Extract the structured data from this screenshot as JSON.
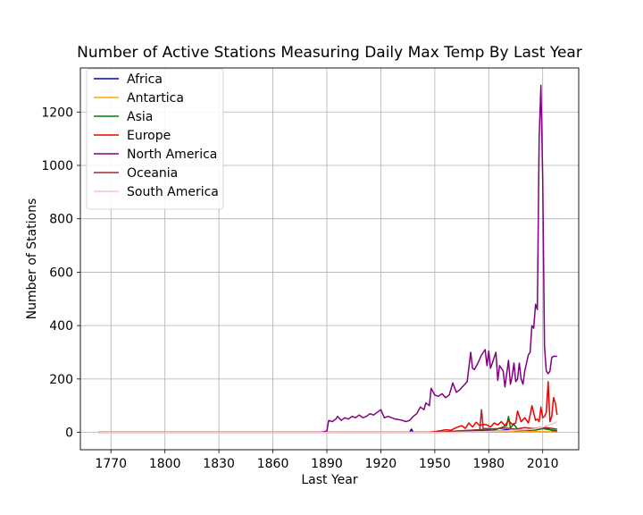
{
  "chart_data": {
    "type": "line",
    "title": "Number of Active Stations Measuring Daily Max Temp By Last Year",
    "xlabel": "Last Year",
    "ylabel": "Number of Stations",
    "xlim": [
      1753,
      2030
    ],
    "ylim": [
      -65,
      1365
    ],
    "xticks": [
      1770,
      1800,
      1830,
      1860,
      1890,
      1920,
      1950,
      1980,
      2010
    ],
    "yticks": [
      0,
      200,
      400,
      600,
      800,
      1000,
      1200
    ],
    "grid": true,
    "legend_position": "top-left",
    "series": [
      {
        "name": "Africa",
        "color": "#0000cc",
        "x": [
          1763,
          1936,
          1937,
          1938,
          1950,
          1960,
          1975,
          1980,
          1985,
          1990,
          1995,
          2000,
          2005,
          2010,
          2012,
          2014,
          2016,
          2018
        ],
        "y": [
          0,
          0,
          12,
          0,
          1,
          2,
          6,
          8,
          5,
          10,
          6,
          8,
          8,
          14,
          16,
          10,
          5,
          3
        ]
      },
      {
        "name": "Antartica",
        "color": "#ffa500",
        "x": [
          1763,
          1950,
          1970,
          1985,
          1990,
          1995,
          2000,
          2005,
          2010,
          2015,
          2018
        ],
        "y": [
          0,
          0,
          1,
          2,
          3,
          2,
          2,
          4,
          3,
          2,
          1
        ]
      },
      {
        "name": "Asia",
        "color": "#008000",
        "x": [
          1763,
          1950,
          1955,
          1960,
          1965,
          1970,
          1975,
          1980,
          1984,
          1986,
          1988,
          1990,
          1991,
          1992,
          1994,
          1996,
          2000,
          2005,
          2010,
          2014,
          2018
        ],
        "y": [
          0,
          0,
          2,
          4,
          6,
          8,
          10,
          14,
          10,
          16,
          20,
          25,
          60,
          18,
          30,
          12,
          8,
          10,
          14,
          10,
          6
        ]
      },
      {
        "name": "Europe",
        "color": "#ee0000",
        "x": [
          1763,
          1945,
          1950,
          1953,
          1956,
          1959,
          1962,
          1965,
          1967,
          1969,
          1971,
          1973,
          1975,
          1977,
          1979,
          1981,
          1983,
          1985,
          1987,
          1989,
          1991,
          1993,
          1995,
          1996,
          1998,
          2000,
          2002,
          2003,
          2004,
          2006,
          2007,
          2008,
          2009,
          2010,
          2011,
          2012,
          2013,
          2014,
          2015,
          2016,
          2017,
          2018
        ],
        "y": [
          0,
          0,
          3,
          6,
          10,
          8,
          18,
          25,
          15,
          35,
          20,
          38,
          25,
          30,
          28,
          20,
          35,
          28,
          40,
          25,
          45,
          30,
          35,
          80,
          40,
          55,
          35,
          65,
          100,
          45,
          50,
          40,
          95,
          55,
          60,
          75,
          190,
          40,
          60,
          130,
          110,
          65
        ]
      },
      {
        "name": "North America",
        "color": "#800080",
        "x": [
          1763,
          1886,
          1888,
          1890,
          1891,
          1893,
          1895,
          1896,
          1898,
          1900,
          1902,
          1904,
          1906,
          1908,
          1910,
          1912,
          1914,
          1916,
          1918,
          1920,
          1922,
          1924,
          1926,
          1928,
          1930,
          1932,
          1934,
          1936,
          1938,
          1940,
          1942,
          1944,
          1945,
          1947,
          1948,
          1950,
          1952,
          1954,
          1956,
          1958,
          1960,
          1962,
          1964,
          1966,
          1968,
          1970,
          1971,
          1972,
          1974,
          1976,
          1978,
          1979,
          1980,
          1981,
          1982,
          1984,
          1985,
          1986,
          1988,
          1989,
          1990,
          1991,
          1992,
          1993,
          1994,
          1995,
          1996,
          1997,
          1998,
          1999,
          2000,
          2001,
          2002,
          2003,
          2004,
          2005,
          2006,
          2007,
          2008,
          2009,
          2010,
          2011,
          2012,
          2013,
          2014,
          2015,
          2016,
          2017,
          2018
        ],
        "y": [
          0,
          0,
          2,
          5,
          45,
          40,
          50,
          60,
          45,
          55,
          50,
          60,
          55,
          65,
          55,
          60,
          70,
          65,
          75,
          85,
          55,
          60,
          55,
          50,
          48,
          45,
          40,
          45,
          60,
          70,
          95,
          85,
          110,
          100,
          165,
          140,
          135,
          145,
          130,
          140,
          185,
          150,
          160,
          175,
          190,
          300,
          240,
          235,
          260,
          290,
          310,
          250,
          305,
          240,
          260,
          300,
          195,
          250,
          230,
          170,
          220,
          270,
          180,
          210,
          260,
          190,
          200,
          260,
          200,
          180,
          230,
          260,
          290,
          300,
          400,
          390,
          480,
          460,
          1100,
          1300,
          950,
          320,
          230,
          220,
          230,
          280,
          285,
          285,
          285
        ]
      },
      {
        "name": "Oceania",
        "color": "#a52a2a",
        "x": [
          1763,
          1950,
          1955,
          1960,
          1965,
          1970,
          1975,
          1976,
          1977,
          1978,
          1980,
          1985,
          1990,
          1995,
          2000,
          2005,
          2010,
          2015,
          2018
        ],
        "y": [
          0,
          0,
          2,
          4,
          6,
          8,
          10,
          85,
          10,
          15,
          12,
          14,
          16,
          12,
          18,
          14,
          20,
          15,
          12
        ]
      },
      {
        "name": "South America",
        "color": "#ffc0cb",
        "x": [
          1763,
          1960,
          1970,
          1980,
          1990,
          2000,
          2005,
          2010,
          2015,
          2018
        ],
        "y": [
          0,
          0,
          2,
          4,
          6,
          10,
          12,
          20,
          30,
          40
        ]
      }
    ]
  }
}
